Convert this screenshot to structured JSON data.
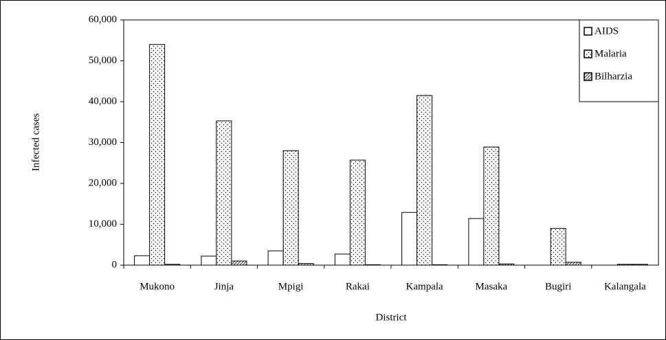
{
  "chart_data": {
    "type": "bar",
    "categories": [
      "Mukono",
      "Jinja",
      "Mpigi",
      "Rakai",
      "Kampala",
      "Masaka",
      "Bugiri",
      "Kalangala"
    ],
    "series": [
      {
        "name": "AIDS",
        "color": "#ffffff",
        "pattern": "none",
        "values": [
          2300,
          2200,
          3500,
          2700,
          12900,
          11400,
          0,
          0
        ]
      },
      {
        "name": "Malaria",
        "color": "#ffffff",
        "pattern": "dots",
        "values": [
          54000,
          35300,
          28000,
          25700,
          41500,
          28900,
          9000,
          200
        ]
      },
      {
        "name": "Bilharzia",
        "color": "#ffffff",
        "pattern": "hatch",
        "values": [
          200,
          1000,
          400,
          100,
          100,
          300,
          700,
          200
        ]
      }
    ],
    "xlabel": "District",
    "ylabel": "Infected cases",
    "ylim": [
      0,
      60000
    ],
    "yticks": [
      0,
      {
        "value": 10000,
        "label": "10,000"
      },
      {
        "value": 20000,
        "label": "20,000"
      },
      {
        "value": 30000,
        "label": "30,000"
      },
      {
        "value": 40000,
        "label": "40,000"
      },
      {
        "value": 50000,
        "label": "50,000"
      },
      {
        "value": 60000,
        "label": "60,000"
      }
    ],
    "grid": false,
    "legend": "upper right"
  }
}
